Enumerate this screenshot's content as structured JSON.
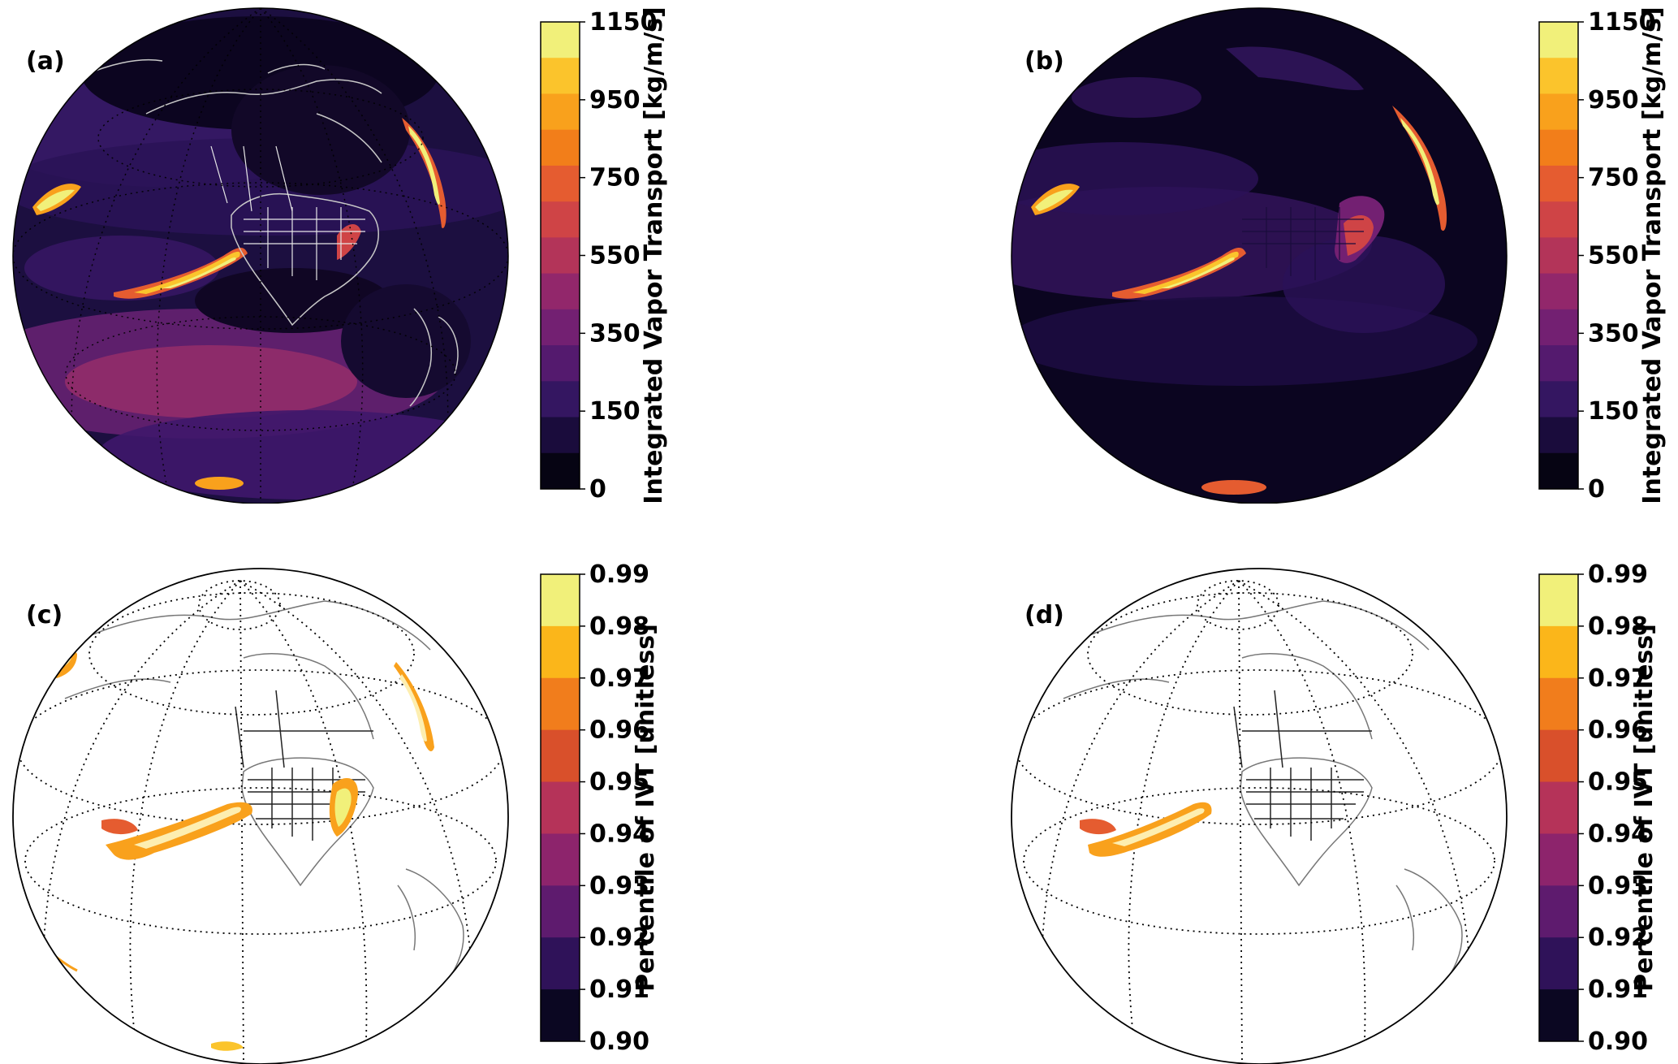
{
  "panels": [
    {
      "label": "(a)",
      "style": "dark"
    },
    {
      "label": "(b)",
      "style": "dark"
    },
    {
      "label": "(c)",
      "style": "light"
    },
    {
      "label": "(d)",
      "style": "light"
    }
  ],
  "colorbars": [
    {
      "title": "Integrated Vapor Transport [kg/m/s]",
      "ticks": [
        "1150",
        "950",
        "750",
        "550",
        "350",
        "150",
        "0"
      ],
      "colors": [
        "#f1f07a",
        "#fbc42c",
        "#f9a11c",
        "#f27e1a",
        "#e55c30",
        "#cf4446",
        "#b33459",
        "#92276b",
        "#732072",
        "#541a6e",
        "#341661",
        "#1a0c3c",
        "#060413"
      ]
    },
    {
      "title": "Integrated Vapor Transport [kg/m/s]",
      "ticks": [
        "1150",
        "950",
        "750",
        "550",
        "350",
        "150",
        "0"
      ],
      "colors": [
        "#f1f07a",
        "#fbc42c",
        "#f9a11c",
        "#f27e1a",
        "#e55c30",
        "#cf4446",
        "#b33459",
        "#92276b",
        "#732072",
        "#541a6e",
        "#341661",
        "#1a0c3c",
        "#060413"
      ]
    },
    {
      "title": "Percentile of IVT [unitless]",
      "ticks": [
        "0.99",
        "0.98",
        "0.97",
        "0.96",
        "0.95",
        "0.94",
        "0.93",
        "0.92",
        "0.91",
        "0.90"
      ],
      "colors": [
        "#f1f07a",
        "#fbb61a",
        "#f17d1c",
        "#d9502b",
        "#b53359",
        "#8d246c",
        "#5e1b6e",
        "#2f1259",
        "#0b0722"
      ]
    },
    {
      "title": "Percentile of IVT [unitless]",
      "ticks": [
        "0.99",
        "0.98",
        "0.97",
        "0.96",
        "0.95",
        "0.94",
        "0.93",
        "0.92",
        "0.91",
        "0.90"
      ],
      "colors": [
        "#f1f07a",
        "#fbb61a",
        "#f17d1c",
        "#d9502b",
        "#b53359",
        "#8d246c",
        "#5e1b6e",
        "#2f1259",
        "#0b0722"
      ]
    }
  ]
}
